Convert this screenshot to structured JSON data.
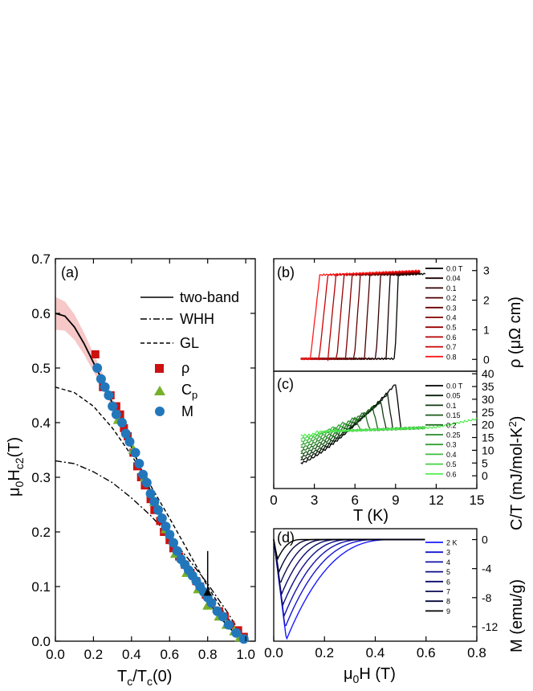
{
  "chart_data": [
    {
      "id": "a",
      "type": "scatter",
      "panel_label": "(a)",
      "xlabel": "T_c/T_c(0)",
      "ylabel": "μ0Hc2(T)",
      "xlim": [
        0.0,
        1.05
      ],
      "ylim": [
        0.0,
        0.7
      ],
      "x_ticks": [
        "0.0",
        "0.2",
        "0.4",
        "0.6",
        "0.8",
        "1.0"
      ],
      "y_ticks": [
        "0.0",
        "0.1",
        "0.2",
        "0.3",
        "0.4",
        "0.5",
        "0.6",
        "0.7"
      ],
      "legend": [
        {
          "label": "two-band",
          "style": "solid"
        },
        {
          "label": "WHH",
          "style": "dashdot"
        },
        {
          "label": "GL",
          "style": "dashed"
        },
        {
          "label": "ρ",
          "marker": "square",
          "color": "#cc1111"
        },
        {
          "label": "C",
          "sub": "p",
          "marker": "triangle",
          "color": "#77b02a"
        },
        {
          "label": "M",
          "marker": "circle",
          "color": "#2277bb"
        }
      ],
      "series": [
        {
          "name": "two-band",
          "x": [
            0.0,
            0.05,
            0.1,
            0.15,
            0.2,
            0.25,
            0.3,
            0.35,
            0.4,
            0.45,
            0.5,
            0.55,
            0.6,
            0.65,
            0.7,
            0.75,
            0.8,
            0.85,
            0.9,
            0.95,
            1.0
          ],
          "y": [
            0.6,
            0.595,
            0.575,
            0.545,
            0.51,
            0.475,
            0.435,
            0.395,
            0.355,
            0.315,
            0.275,
            0.238,
            0.2,
            0.163,
            0.13,
            0.1,
            0.075,
            0.05,
            0.03,
            0.012,
            0.0
          ]
        },
        {
          "name": "WHH",
          "x": [
            0.0,
            0.1,
            0.2,
            0.3,
            0.4,
            0.5,
            0.6,
            0.7,
            0.8,
            0.9,
            1.0
          ],
          "y": [
            0.33,
            0.325,
            0.31,
            0.29,
            0.262,
            0.23,
            0.192,
            0.15,
            0.105,
            0.055,
            0.0
          ]
        },
        {
          "name": "GL",
          "x": [
            0.0,
            0.1,
            0.2,
            0.3,
            0.4,
            0.5,
            0.6,
            0.7,
            0.8,
            0.9,
            1.0
          ],
          "y": [
            0.465,
            0.455,
            0.43,
            0.39,
            0.34,
            0.285,
            0.225,
            0.163,
            0.1,
            0.045,
            0.0
          ]
        },
        {
          "name": "ρ",
          "x": [
            0.21,
            0.25,
            0.29,
            0.32,
            0.34,
            0.36,
            0.38,
            0.41,
            0.43,
            0.45,
            0.47,
            0.5,
            0.52,
            0.55,
            0.57,
            0.6,
            0.62,
            0.65,
            0.68,
            0.71,
            0.74,
            0.76,
            0.79,
            0.82,
            0.86,
            0.89,
            0.92,
            0.96,
            0.99
          ],
          "y": [
            0.525,
            0.465,
            0.45,
            0.43,
            0.415,
            0.39,
            0.375,
            0.345,
            0.32,
            0.3,
            0.285,
            0.26,
            0.24,
            0.22,
            0.2,
            0.185,
            0.17,
            0.155,
            0.14,
            0.125,
            0.11,
            0.1,
            0.085,
            0.07,
            0.055,
            0.045,
            0.03,
            0.02,
            0.008
          ]
        },
        {
          "name": "C_p",
          "x": [
            0.33,
            0.41,
            0.47,
            0.52,
            0.58,
            0.63,
            0.69,
            0.75,
            0.8,
            0.86,
            0.9,
            0.94,
            0.97
          ],
          "y": [
            0.405,
            0.35,
            0.3,
            0.255,
            0.205,
            0.16,
            0.125,
            0.095,
            0.065,
            0.045,
            0.03,
            0.018,
            0.007
          ]
        },
        {
          "name": "M",
          "x": [
            0.22,
            0.24,
            0.26,
            0.28,
            0.3,
            0.32,
            0.35,
            0.37,
            0.39,
            0.42,
            0.44,
            0.46,
            0.48,
            0.5,
            0.52,
            0.54,
            0.56,
            0.58,
            0.6,
            0.62,
            0.64,
            0.66,
            0.68,
            0.7,
            0.72,
            0.74,
            0.76,
            0.78,
            0.8,
            0.82,
            0.85,
            0.88,
            0.91,
            0.95,
            0.99
          ],
          "y": [
            0.5,
            0.48,
            0.465,
            0.45,
            0.43,
            0.415,
            0.4,
            0.38,
            0.365,
            0.345,
            0.325,
            0.305,
            0.29,
            0.27,
            0.255,
            0.24,
            0.225,
            0.21,
            0.195,
            0.18,
            0.165,
            0.15,
            0.14,
            0.13,
            0.12,
            0.11,
            0.1,
            0.09,
            0.08,
            0.07,
            0.055,
            0.045,
            0.03,
            0.015,
            0.004
          ]
        }
      ],
      "annotation": {
        "type": "arrow",
        "x": 0.8,
        "y_from": 0.165,
        "y_to": 0.098
      }
    },
    {
      "id": "b",
      "type": "line",
      "panel_label": "(b)",
      "ylabel": "ρ (μΩ cm)",
      "xlim": [
        0,
        15
      ],
      "ylim": [
        -0.4,
        3.4
      ],
      "y_ticks": [
        "0",
        "1",
        "2",
        "3"
      ],
      "legend_title_first": "0.0 T",
      "series": [
        {
          "name": "0.0 T",
          "onset_K": 9.2,
          "color": "#000000"
        },
        {
          "name": "0.04",
          "onset_K": 8.6,
          "color": "#1a0000"
        },
        {
          "name": "0.1",
          "onset_K": 7.9,
          "color": "#330000"
        },
        {
          "name": "0.2",
          "onset_K": 7.1,
          "color": "#4d0000"
        },
        {
          "name": "0.3",
          "onset_K": 6.4,
          "color": "#660000"
        },
        {
          "name": "0.4",
          "onset_K": 5.8,
          "color": "#800000"
        },
        {
          "name": "0.5",
          "onset_K": 5.2,
          "color": "#990000"
        },
        {
          "name": "0.6",
          "onset_K": 4.6,
          "color": "#b30000"
        },
        {
          "name": "0.7",
          "onset_K": 4.0,
          "color": "#cc0000"
        },
        {
          "name": "0.8",
          "onset_K": 3.4,
          "color": "#ff1a1a"
        }
      ]
    },
    {
      "id": "c",
      "type": "line",
      "panel_label": "(c)",
      "xlabel": "T (K)",
      "ylabel": "C/T (mJ/mol-K²)",
      "xlim": [
        0,
        15
      ],
      "ylim": [
        -5,
        41
      ],
      "x_ticks": [
        "0",
        "3",
        "6",
        "9",
        "12",
        "15"
      ],
      "y_ticks": [
        "0",
        "5",
        "10",
        "15",
        "20",
        "25",
        "30",
        "35",
        "40"
      ],
      "series": [
        {
          "name": "0.0 T",
          "peak_K": 9.0,
          "peak_value": 36,
          "color": "#000000"
        },
        {
          "name": "0.05",
          "peak_K": 8.4,
          "peak_value": 32,
          "color": "#0a1f0a"
        },
        {
          "name": "0.1",
          "peak_K": 7.9,
          "peak_value": 29,
          "color": "#123812"
        },
        {
          "name": "0.15",
          "peak_K": 7.3,
          "peak_value": 27,
          "color": "#1a5a1a"
        },
        {
          "name": "0.2",
          "peak_K": 6.7,
          "peak_value": 25,
          "color": "#227022"
        },
        {
          "name": "0.25",
          "peak_K": 6.0,
          "peak_value": 23,
          "color": "#2a8a2a"
        },
        {
          "name": "0.3",
          "peak_K": 5.2,
          "peak_value": 21,
          "color": "#33a033"
        },
        {
          "name": "0.4",
          "peak_K": 4.4,
          "peak_value": 19,
          "color": "#3dbb3d"
        },
        {
          "name": "0.5",
          "peak_K": 3.6,
          "peak_value": 17,
          "color": "#44d044"
        },
        {
          "name": "0.6",
          "peak_K": 2.8,
          "peak_value": 16,
          "color": "#55ee55"
        }
      ]
    },
    {
      "id": "d",
      "type": "line",
      "panel_label": "(d)",
      "xlabel": "μ0H (T)",
      "ylabel": "M (emu/g)",
      "xlim": [
        0,
        0.8
      ],
      "ylim": [
        -14,
        1.5
      ],
      "x_ticks": [
        "0.0",
        "0.2",
        "0.4",
        "0.6",
        "0.8"
      ],
      "y_ticks": [
        "0",
        "-4",
        "-8",
        "-12"
      ],
      "series": [
        {
          "name": "2 K",
          "min_H": 0.05,
          "min_M": -13.8,
          "H_end": 0.47,
          "color": "#1a1aff"
        },
        {
          "name": "3",
          "min_H": 0.045,
          "min_M": -12.1,
          "H_end": 0.41,
          "color": "#1515d0"
        },
        {
          "name": "4",
          "min_H": 0.04,
          "min_M": -10.6,
          "H_end": 0.36,
          "color": "#1111aa"
        },
        {
          "name": "5",
          "min_H": 0.035,
          "min_M": -9.1,
          "H_end": 0.31,
          "color": "#0d0d88"
        },
        {
          "name": "6",
          "min_H": 0.03,
          "min_M": -7.6,
          "H_end": 0.26,
          "color": "#0a0a6a"
        },
        {
          "name": "7",
          "min_H": 0.025,
          "min_M": -6.1,
          "H_end": 0.21,
          "color": "#080850"
        },
        {
          "name": "8",
          "min_H": 0.02,
          "min_M": -4.5,
          "H_end": 0.16,
          "color": "#05053a"
        },
        {
          "name": "9",
          "min_H": 0.015,
          "min_M": -2.7,
          "H_end": 0.11,
          "color": "#000000"
        }
      ]
    }
  ]
}
